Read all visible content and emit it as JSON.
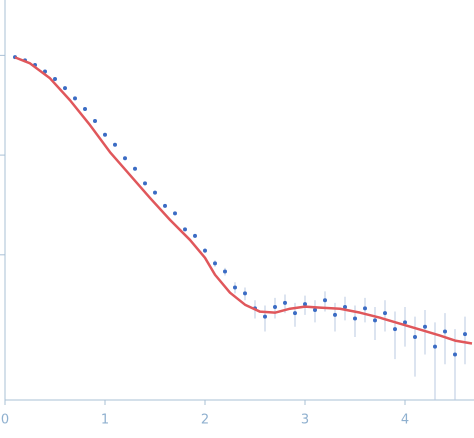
{
  "chart_data": {
    "type": "scatter",
    "ylog": true,
    "xlim": [
      0,
      4.68
    ],
    "xticks": [
      0,
      1,
      2,
      3,
      4
    ],
    "ylim": [
      0.00035,
      3.2
    ],
    "yticks": [
      1,
      0.1,
      0.01
    ],
    "points": {
      "color": "#3b6cc4",
      "error_color": "#b9c8e0",
      "x": [
        0.1,
        0.2,
        0.3,
        0.4,
        0.5,
        0.6,
        0.7,
        0.8,
        0.9,
        1.0,
        1.1,
        1.2,
        1.3,
        1.4,
        1.5,
        1.6,
        1.7,
        1.8,
        1.9,
        2.0,
        2.1,
        2.2,
        2.3,
        2.4,
        2.5,
        2.6,
        2.7,
        2.8,
        2.9,
        3.0,
        3.1,
        3.2,
        3.3,
        3.4,
        3.5,
        3.6,
        3.7,
        3.8,
        3.9,
        4.0,
        4.1,
        4.2,
        4.3,
        4.4,
        4.5,
        4.6
      ],
      "y": [
        0.96,
        0.89,
        0.8,
        0.69,
        0.58,
        0.47,
        0.37,
        0.29,
        0.22,
        0.16,
        0.127,
        0.093,
        0.073,
        0.052,
        0.042,
        0.031,
        0.026,
        0.018,
        0.0155,
        0.011,
        0.0082,
        0.0068,
        0.0047,
        0.0041,
        0.0029,
        0.0024,
        0.003,
        0.0033,
        0.0026,
        0.0032,
        0.0028,
        0.0035,
        0.0025,
        0.003,
        0.0023,
        0.0029,
        0.0022,
        0.0026,
        0.0018,
        0.0021,
        0.0015,
        0.0019,
        0.0012,
        0.0017,
        0.001,
        0.0016
      ],
      "errors": [
        0.01,
        0.01,
        0.01,
        0.01,
        0.01,
        0.008,
        0.006,
        0.005,
        0.004,
        0.003,
        0.003,
        0.002,
        0.002,
        0.0015,
        0.0012,
        0.001,
        0.001,
        0.0008,
        0.0007,
        0.0006,
        0.0006,
        0.0006,
        0.0006,
        0.0006,
        0.0006,
        0.0007,
        0.0007,
        0.0007,
        0.0007,
        0.0007,
        0.0007,
        0.0008,
        0.0008,
        0.0008,
        0.0008,
        0.0008,
        0.0008,
        0.0009,
        0.0009,
        0.0009,
        0.0009,
        0.0009,
        0.0009,
        0.0009,
        0.0008,
        0.0008
      ]
    },
    "fit": {
      "color": "#e0575b",
      "x": [
        0.1,
        0.25,
        0.45,
        0.65,
        0.85,
        1.05,
        1.25,
        1.45,
        1.65,
        1.85,
        2.0,
        2.1,
        2.25,
        2.4,
        2.55,
        2.7,
        2.85,
        3.0,
        3.15,
        3.35,
        3.55,
        3.75,
        3.95,
        4.15,
        4.35,
        4.5,
        4.67
      ],
      "y": [
        0.955,
        0.832,
        0.589,
        0.355,
        0.2,
        0.107,
        0.0631,
        0.0372,
        0.0224,
        0.0141,
        0.00933,
        0.00631,
        0.00417,
        0.00316,
        0.00269,
        0.00263,
        0.00288,
        0.00302,
        0.00295,
        0.00288,
        0.00263,
        0.00234,
        0.00204,
        0.00178,
        0.00155,
        0.00138,
        0.00129
      ]
    }
  }
}
